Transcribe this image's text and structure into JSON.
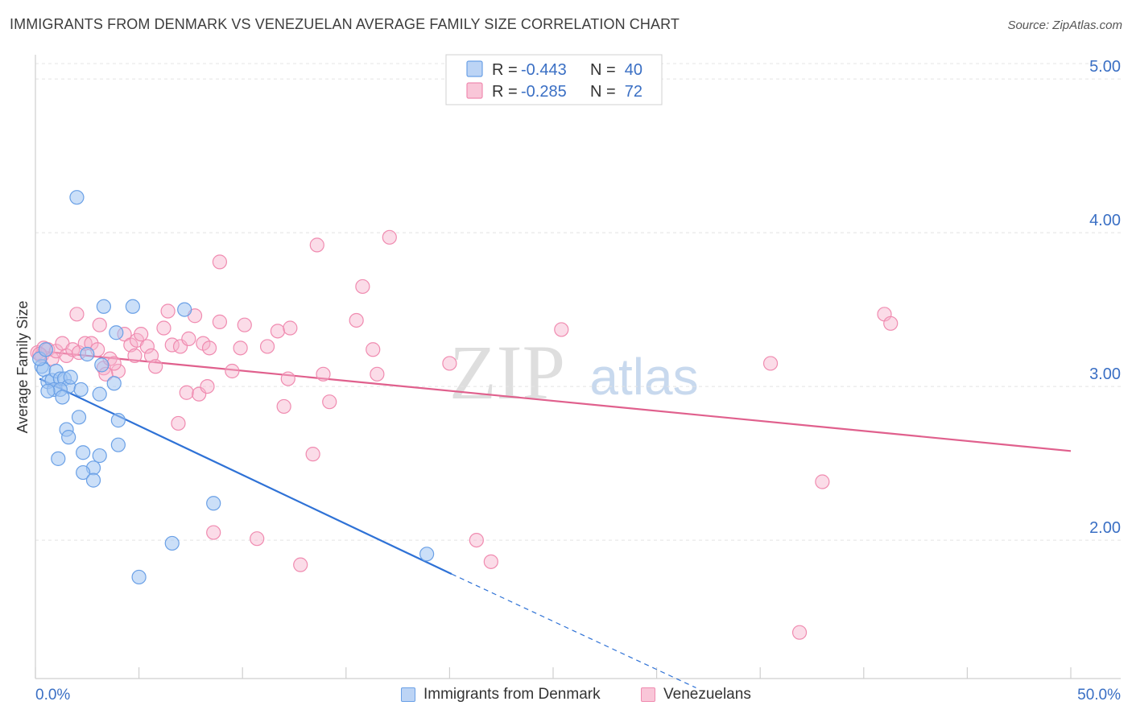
{
  "title": "IMMIGRANTS FROM DENMARK VS VENEZUELAN AVERAGE FAMILY SIZE CORRELATION CHART",
  "source": "Source: ZipAtlas.com",
  "watermark": {
    "zip": "ZIP",
    "atlas": "atlas"
  },
  "legend": {
    "rows": [
      {
        "r_label": "R =",
        "r_value": "-0.443",
        "n_label": "N =",
        "n_value": "40",
        "color": "#6aa0e6"
      },
      {
        "r_label": "R =",
        "r_value": "-0.285",
        "n_label": "N =",
        "n_value": "72",
        "color": "#f08bb0"
      }
    ]
  },
  "bottom_legend": [
    "Immigrants from Denmark",
    "Venezuelans"
  ],
  "chart_data": {
    "type": "scatter",
    "ylabel": "Average Family Size",
    "xlabel": "",
    "x_tick_labels": {
      "min": "0.0%",
      "max": "50.0%"
    },
    "y_tick_labels": [
      "2.00",
      "3.00",
      "4.00",
      "5.00"
    ],
    "xlim": [
      0,
      50
    ],
    "ylim": [
      1.1,
      5.1
    ],
    "grid": true,
    "legend_position": "top-center",
    "series": [
      {
        "name": "Immigrants from Denmark",
        "color": "#6aa0e6",
        "line_color": "#2f72d6",
        "points": [
          [
            2.0,
            4.23
          ],
          [
            0.3,
            3.13
          ],
          [
            0.4,
            3.11
          ],
          [
            0.6,
            3.03
          ],
          [
            0.8,
            3.04
          ],
          [
            1.0,
            3.1
          ],
          [
            1.2,
            3.05
          ],
          [
            1.4,
            3.05
          ],
          [
            1.6,
            3.0
          ],
          [
            0.9,
            2.98
          ],
          [
            1.2,
            2.98
          ],
          [
            1.3,
            2.93
          ],
          [
            0.6,
            2.97
          ],
          [
            1.7,
            3.06
          ],
          [
            2.2,
            2.98
          ],
          [
            2.5,
            3.21
          ],
          [
            3.2,
            3.14
          ],
          [
            3.8,
            3.02
          ],
          [
            2.1,
            2.8
          ],
          [
            3.1,
            2.95
          ],
          [
            4.0,
            2.78
          ],
          [
            1.5,
            2.72
          ],
          [
            1.6,
            2.67
          ],
          [
            2.3,
            2.57
          ],
          [
            3.1,
            2.55
          ],
          [
            1.1,
            2.53
          ],
          [
            2.8,
            2.47
          ],
          [
            2.3,
            2.44
          ],
          [
            2.8,
            2.39
          ],
          [
            3.3,
            3.52
          ],
          [
            4.7,
            3.52
          ],
          [
            7.2,
            3.5
          ],
          [
            3.9,
            3.35
          ],
          [
            4.0,
            2.62
          ],
          [
            8.6,
            2.24
          ],
          [
            6.6,
            1.98
          ],
          [
            5.0,
            1.76
          ],
          [
            18.9,
            1.91
          ],
          [
            0.2,
            3.18
          ],
          [
            0.5,
            3.24
          ]
        ],
        "trend": {
          "x": [
            0.2,
            20.1
          ],
          "y": [
            3.05,
            1.78
          ],
          "dashed_to": [
            31.9,
            1.04
          ]
        }
      },
      {
        "name": "Venezuelans",
        "color": "#f08bb0",
        "line_color": "#e0608d",
        "points": [
          [
            0.1,
            3.22
          ],
          [
            0.3,
            3.2
          ],
          [
            0.4,
            3.25
          ],
          [
            0.6,
            3.24
          ],
          [
            0.8,
            3.18
          ],
          [
            1.0,
            3.23
          ],
          [
            1.3,
            3.28
          ],
          [
            1.5,
            3.2
          ],
          [
            1.8,
            3.24
          ],
          [
            2.1,
            3.22
          ],
          [
            2.4,
            3.28
          ],
          [
            2.7,
            3.28
          ],
          [
            3.0,
            3.24
          ],
          [
            3.3,
            3.12
          ],
          [
            3.6,
            3.18
          ],
          [
            4.0,
            3.1
          ],
          [
            4.3,
            3.34
          ],
          [
            4.6,
            3.27
          ],
          [
            4.9,
            3.3
          ],
          [
            5.1,
            3.34
          ],
          [
            5.4,
            3.26
          ],
          [
            5.6,
            3.2
          ],
          [
            5.8,
            3.13
          ],
          [
            6.2,
            3.38
          ],
          [
            6.4,
            3.49
          ],
          [
            6.6,
            3.27
          ],
          [
            7.0,
            3.26
          ],
          [
            7.4,
            3.31
          ],
          [
            7.7,
            3.46
          ],
          [
            8.1,
            3.28
          ],
          [
            8.4,
            3.25
          ],
          [
            8.9,
            3.42
          ],
          [
            9.9,
            3.25
          ],
          [
            10.1,
            3.4
          ],
          [
            11.2,
            3.26
          ],
          [
            11.7,
            3.36
          ],
          [
            12.3,
            3.38
          ],
          [
            9.5,
            3.1
          ],
          [
            12.0,
            2.87
          ],
          [
            12.2,
            3.05
          ],
          [
            13.9,
            3.08
          ],
          [
            14.2,
            2.9
          ],
          [
            7.3,
            2.96
          ],
          [
            7.9,
            2.95
          ],
          [
            8.3,
            3.0
          ],
          [
            6.9,
            2.76
          ],
          [
            2.0,
            3.47
          ],
          [
            3.1,
            3.4
          ],
          [
            3.4,
            3.08
          ],
          [
            3.8,
            3.15
          ],
          [
            4.8,
            3.2
          ],
          [
            8.9,
            3.81
          ],
          [
            13.6,
            3.92
          ],
          [
            17.1,
            3.97
          ],
          [
            15.8,
            3.65
          ],
          [
            15.5,
            3.43
          ],
          [
            16.3,
            3.24
          ],
          [
            16.5,
            3.08
          ],
          [
            20.0,
            3.15
          ],
          [
            25.4,
            3.37
          ],
          [
            35.5,
            3.15
          ],
          [
            41.0,
            3.47
          ],
          [
            41.3,
            3.41
          ],
          [
            13.4,
            2.56
          ],
          [
            8.6,
            2.05
          ],
          [
            10.7,
            2.01
          ],
          [
            12.8,
            1.84
          ],
          [
            21.3,
            2.0
          ],
          [
            22.0,
            1.86
          ],
          [
            38.0,
            2.38
          ],
          [
            36.9,
            1.4
          ],
          [
            0.2,
            3.21
          ]
        ],
        "trend": {
          "x": [
            0.2,
            50.0
          ],
          "y": [
            3.23,
            2.58
          ]
        }
      }
    ]
  }
}
